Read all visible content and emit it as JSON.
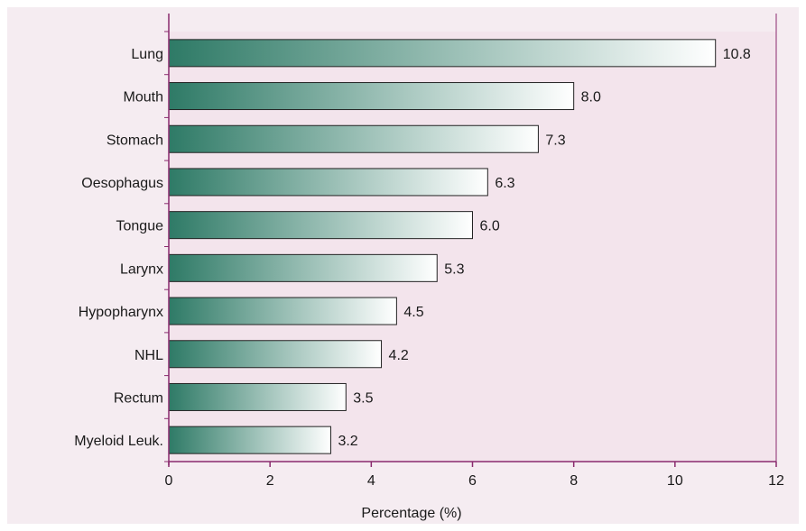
{
  "chart_data": {
    "type": "bar",
    "orientation": "horizontal",
    "categories": [
      "Lung",
      "Mouth",
      "Stomach",
      "Oesophagus",
      "Tongue",
      "Larynx",
      "Hypopharynx",
      "NHL",
      "Rectum",
      "Myeloid Leuk."
    ],
    "values": [
      10.8,
      8.0,
      7.3,
      6.3,
      6.0,
      5.3,
      4.5,
      4.2,
      3.5,
      3.2
    ],
    "value_labels": [
      "10.8",
      "8.0",
      "7.3",
      "6.3",
      "6.0",
      "5.3",
      "4.5",
      "4.2",
      "3.5",
      "3.2"
    ],
    "title": "",
    "xlabel": "Percentage (%)",
    "ylabel": "",
    "xlim": [
      0,
      12
    ],
    "xticks": [
      "0",
      "2",
      "4",
      "6",
      "8",
      "10",
      "12"
    ],
    "grid": false,
    "legend": "none"
  },
  "colors": {
    "panel_bg": "#f5ecf1",
    "plot_bg": "#f3e4ec",
    "axis_line": "#8a2a6e",
    "bar_start": "#2e7a66",
    "bar_end": "#ffffff",
    "bar_stroke": "#222222"
  }
}
